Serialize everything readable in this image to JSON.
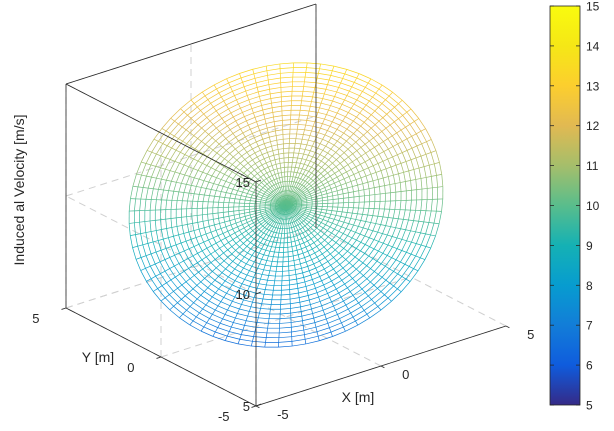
{
  "chart_data": {
    "type": "surface",
    "title": "",
    "xlabel": "X [m]",
    "ylabel": "Y [m]",
    "zlabel": "Induced al Velocity [m/s]",
    "xlim": [
      -5,
      5
    ],
    "ylim": [
      -5,
      5
    ],
    "zlim": [
      5,
      15
    ],
    "xticks": [
      "-5",
      "0",
      "5"
    ],
    "yticks": [
      "-5",
      "0",
      "5"
    ],
    "zticks": [
      "5",
      "10",
      "15"
    ],
    "surface": {
      "shape": "disk",
      "radius": 5,
      "z_formula": "z = 10 + 0.5*x + 0.5*y",
      "z_range": [
        5,
        15
      ],
      "radial_lines": 72,
      "rings": 30
    },
    "colorbar": {
      "colormap": "parula",
      "min": 5,
      "max": 15,
      "ticks": [
        "5",
        "6",
        "7",
        "8",
        "9",
        "10",
        "11",
        "12",
        "13",
        "14",
        "15"
      ]
    },
    "grid": true,
    "box": true
  }
}
